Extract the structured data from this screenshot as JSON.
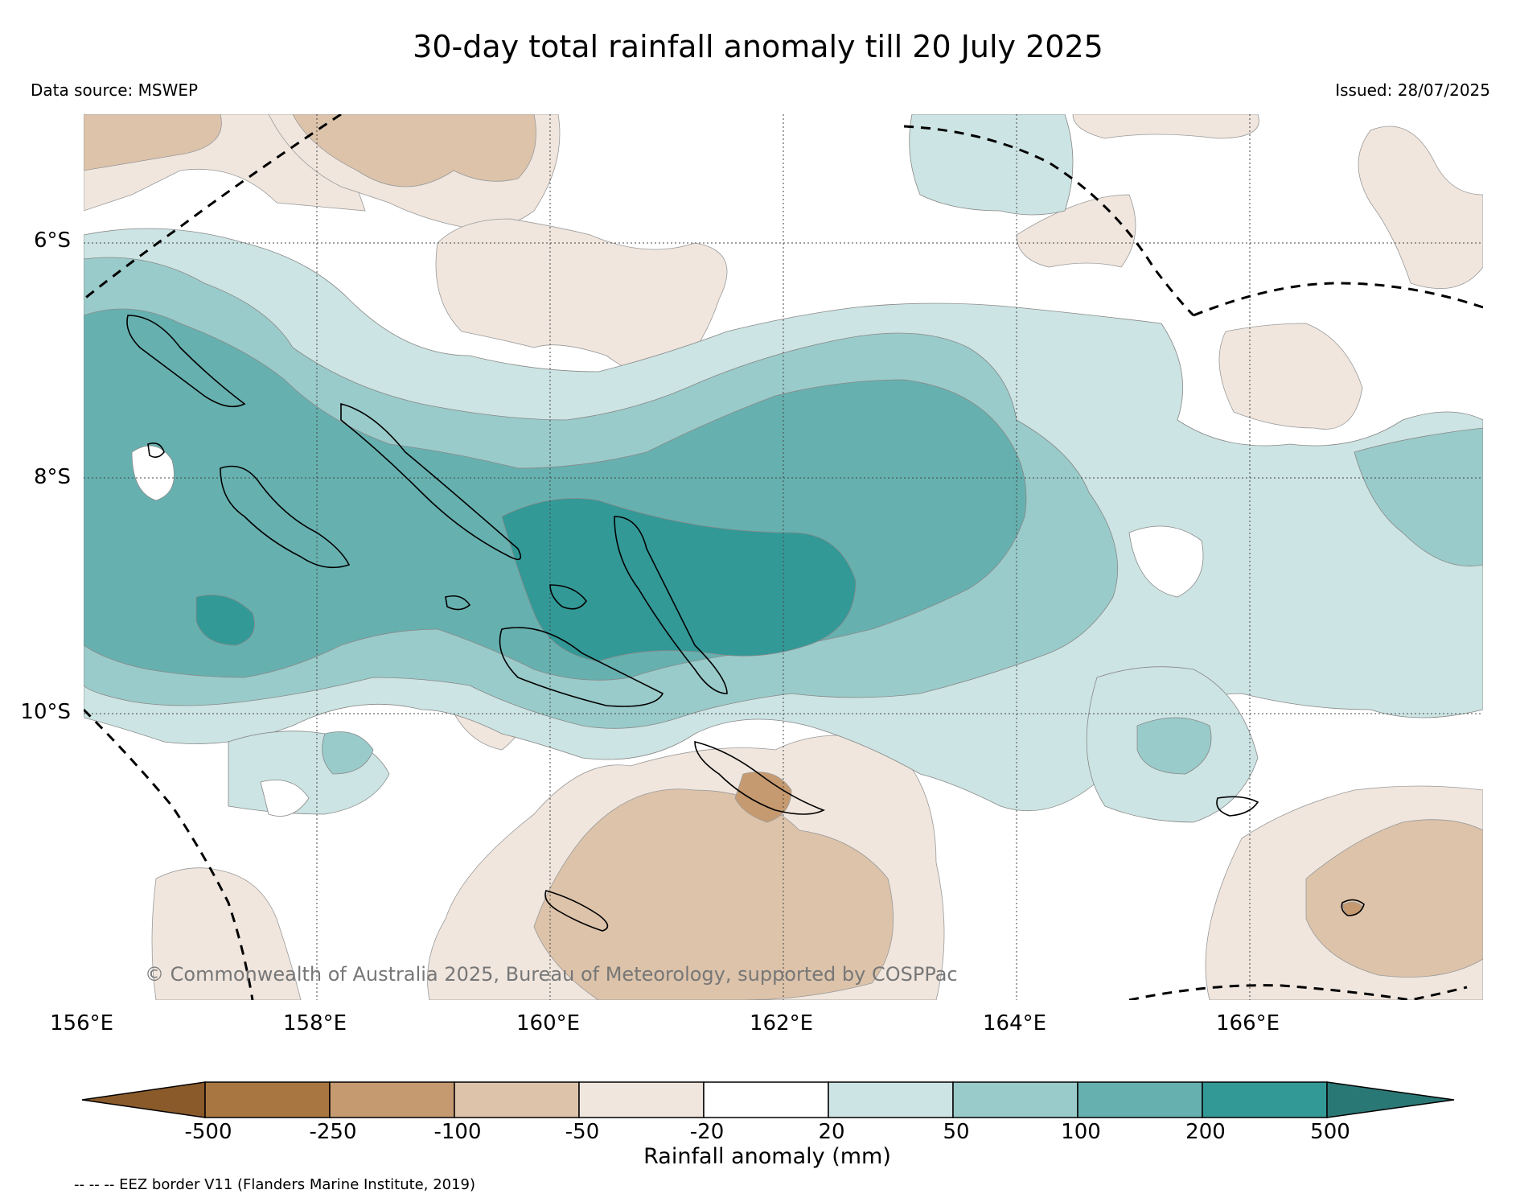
{
  "title": "30-day total rainfall anomaly till 20 July 2025",
  "data_source": "Data source: MSWEP",
  "issued": "Issued: 28/07/2025",
  "copyright": "© Commonwealth of Australia 2025, Bureau of Meteorology, supported by COSPPac",
  "map": {
    "lat_labels": [
      "6°S",
      "8°S",
      "10°S"
    ],
    "lon_labels": [
      "156°E",
      "158°E",
      "160°E",
      "162°E",
      "164°E",
      "166°E"
    ],
    "lon_range": [
      156,
      168
    ],
    "lat_range": [
      -4.9,
      -12.4
    ]
  },
  "colorbar": {
    "label": "Rainfall anomaly (mm)",
    "ticks": [
      "-500",
      "-250",
      "-100",
      "-50",
      "-20",
      "20",
      "50",
      "100",
      "200",
      "500"
    ],
    "colors": {
      "lt_-500": "#8b5a2b",
      "-500_-250": "#a87640",
      "-250_-100": "#c69a70",
      "-100_-50": "#dcc3aa",
      "-50_-20": "#f0e6de",
      "-20_20": "#ffffff",
      "20_50": "#cce4e3",
      "50_100": "#99cbca",
      "100_200": "#66b1b0",
      "200_500": "#339997",
      "gt_500": "#2a7876"
    }
  },
  "legend_note": "-- -- -- EEZ border V11 (Flanders Marine Institute, 2019)"
}
